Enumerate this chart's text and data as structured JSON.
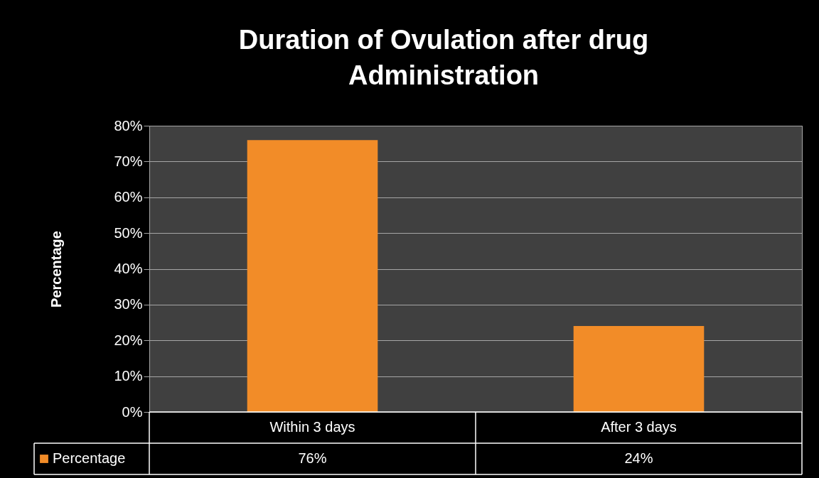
{
  "chart_data": {
    "type": "bar",
    "title": "Duration of  Ovulation after drug Administration",
    "ylabel": "Percentage",
    "categories": [
      "Within 3 days",
      "After 3 days"
    ],
    "series": [
      {
        "name": "Percentage",
        "color": "#f28c28",
        "values": [
          76,
          24
        ],
        "value_labels": [
          "76%",
          "24%"
        ]
      }
    ],
    "ylim": [
      0,
      80
    ],
    "yticks": [
      {
        "value": 0,
        "label": "0%"
      },
      {
        "value": 10,
        "label": "10%"
      },
      {
        "value": 20,
        "label": "20%"
      },
      {
        "value": 30,
        "label": "30%"
      },
      {
        "value": 40,
        "label": "40%"
      },
      {
        "value": 50,
        "label": "50%"
      },
      {
        "value": 60,
        "label": "60%"
      },
      {
        "value": 70,
        "label": "70%"
      },
      {
        "value": 80,
        "label": "80%"
      }
    ],
    "grid": "y",
    "legend": "bottom"
  }
}
